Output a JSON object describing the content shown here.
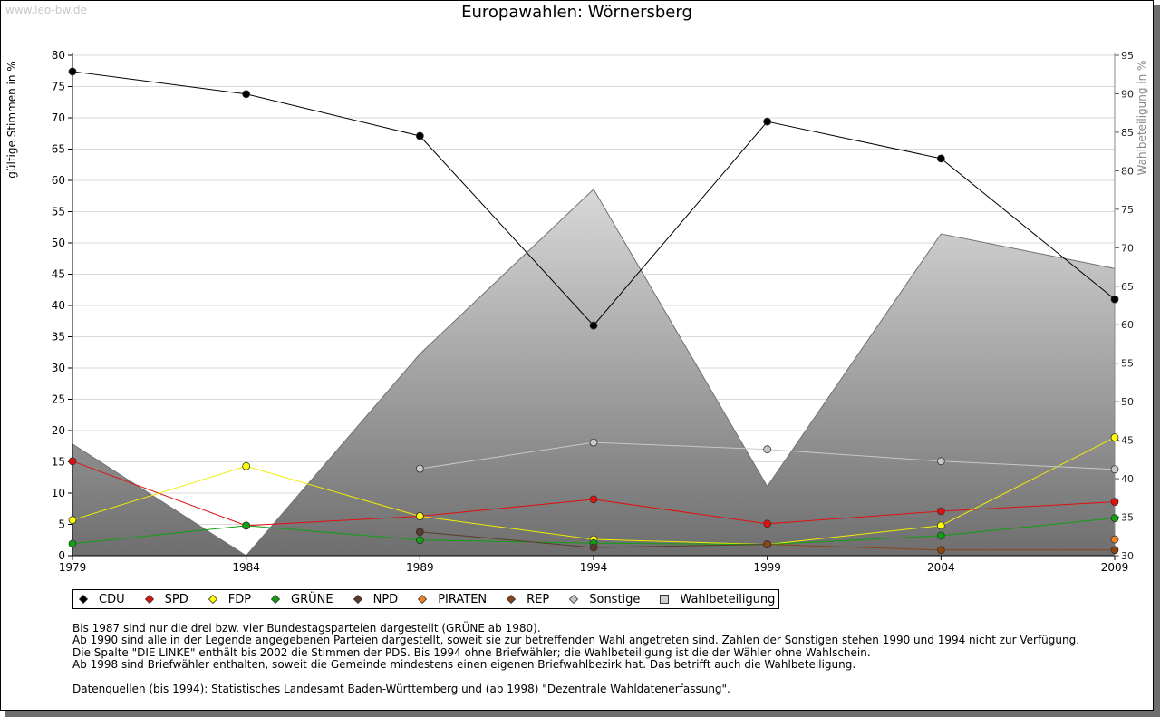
{
  "watermark": "www.leo-bw.de",
  "chart_data": {
    "type": "line",
    "title": "Europawahlen: Wörnersberg",
    "ylabel": "gültige Stimmen in %",
    "y2label": "Wahlbeteiligung in %",
    "ylim": [
      0,
      80
    ],
    "y2lim": [
      30,
      95
    ],
    "yticks": [
      0,
      5,
      10,
      15,
      20,
      25,
      30,
      35,
      40,
      45,
      50,
      55,
      60,
      65,
      70,
      75,
      80
    ],
    "y2ticks": [
      30,
      35,
      40,
      45,
      50,
      55,
      60,
      65,
      70,
      75,
      80,
      85,
      90,
      95
    ],
    "categories": [
      "1979",
      "1984",
      "1989",
      "1994",
      "1999",
      "2004",
      "2009"
    ],
    "series": [
      {
        "name": "CDU",
        "color": "#000000",
        "line": "#000000",
        "values": [
          77.4,
          73.8,
          67.1,
          36.8,
          69.4,
          63.5,
          41.0
        ]
      },
      {
        "name": "SPD",
        "color": "#e01010",
        "line": "#e01010",
        "values": [
          15.1,
          4.8,
          6.3,
          9.0,
          5.1,
          7.1,
          8.6
        ]
      },
      {
        "name": "FDP",
        "color": "#ffff00",
        "line": "#eeee00",
        "values": [
          5.7,
          14.3,
          6.3,
          2.6,
          1.8,
          4.8,
          18.9
        ]
      },
      {
        "name": "GRÜNE",
        "color": "#10a010",
        "line": "#10a010",
        "values": [
          1.9,
          4.8,
          2.5,
          2.0,
          1.8,
          3.2,
          6.0
        ]
      },
      {
        "name": "NPD",
        "color": "#5a3a2a",
        "line": "#5a3a2a",
        "values": [
          null,
          null,
          3.8,
          1.3,
          1.8,
          null,
          null
        ]
      },
      {
        "name": "PIRATEN",
        "color": "#f08020",
        "line": "#f08020",
        "values": [
          null,
          null,
          null,
          null,
          null,
          null,
          2.6
        ]
      },
      {
        "name": "REP",
        "color": "#8b4513",
        "line": "#8b4513",
        "values": [
          null,
          null,
          null,
          null,
          1.8,
          0.9,
          0.9
        ]
      },
      {
        "name": "Sonstige",
        "color": "#c8c8c8",
        "line": "#c8c8c8",
        "values": [
          null,
          null,
          13.9,
          18.1,
          17.0,
          15.1,
          13.8
        ]
      }
    ],
    "area": {
      "name": "Wahlbeteiligung",
      "axis": "right",
      "values": [
        44.5,
        30.0,
        56.2,
        77.6,
        39.0,
        71.8,
        67.3
      ]
    },
    "legend_position": "bottom"
  },
  "notes": [
    "Bis 1987 sind nur die drei bzw. vier Bundestagsparteien dargestellt (GRÜNE ab 1980).",
    "Ab 1990 sind alle in der Legende angegebenen Parteien dargestellt, soweit sie zur betreffenden Wahl angetreten sind. Zahlen der Sonstigen stehen 1990 und 1994 nicht zur Verfügung.",
    "Die Spalte \"DIE LINKE\" enthält bis 2002 die Stimmen der PDS. Bis 1994 ohne Briefwähler; die Wahlbeteiligung ist die der Wähler ohne Wahlschein.",
    "Ab 1998 sind Briefwähler enthalten, soweit die Gemeinde mindestens einen eigenen Briefwahlbezirk hat. Das betrifft auch die Wahlbeteiligung."
  ],
  "source": "Datenquellen (bis 1994): Statistisches Landesamt Baden-Württemberg und (ab 1998) \"Dezentrale Wahldatenerfassung\"."
}
